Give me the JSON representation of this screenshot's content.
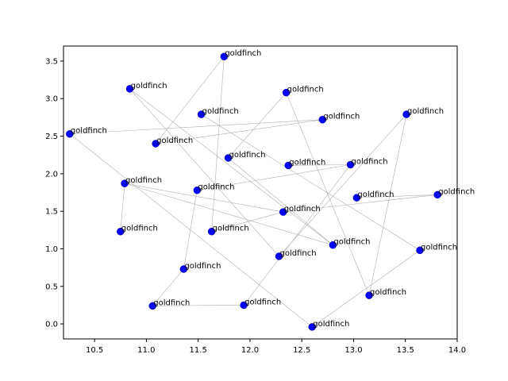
{
  "chart_data": {
    "type": "scatter",
    "title": "",
    "xlabel": "",
    "ylabel": "",
    "xlim": [
      10.2,
      14.0
    ],
    "ylim": [
      -0.2,
      3.7
    ],
    "xticks": [
      10.5,
      11.0,
      11.5,
      12.0,
      12.5,
      13.0,
      13.5,
      14.0
    ],
    "xtick_labels": [
      "10.5",
      "11.0",
      "11.5",
      "12.0",
      "12.5",
      "13.0",
      "13.5",
      "14.0"
    ],
    "yticks": [
      0.0,
      0.5,
      1.0,
      1.5,
      2.0,
      2.5,
      3.0,
      3.5
    ],
    "ytick_labels": [
      "0.0",
      "0.5",
      "1.0",
      "1.5",
      "2.0",
      "2.5",
      "3.0",
      "3.5"
    ],
    "grid": false,
    "point_color": "#0000ff",
    "edge_color": "#b0b0b0",
    "points": [
      {
        "x": 11.75,
        "y": 3.56,
        "label": "goldfinch"
      },
      {
        "x": 10.84,
        "y": 3.13,
        "label": "goldfinch"
      },
      {
        "x": 12.35,
        "y": 3.08,
        "label": "goldfinch"
      },
      {
        "x": 11.53,
        "y": 2.79,
        "label": "goldfinch"
      },
      {
        "x": 13.51,
        "y": 2.79,
        "label": "goldfinch"
      },
      {
        "x": 12.7,
        "y": 2.72,
        "label": "goldfinch"
      },
      {
        "x": 10.26,
        "y": 2.53,
        "label": "goldfinch"
      },
      {
        "x": 11.09,
        "y": 2.4,
        "label": "goldfinch"
      },
      {
        "x": 11.79,
        "y": 2.21,
        "label": "goldfinch"
      },
      {
        "x": 12.37,
        "y": 2.11,
        "label": "goldfinch"
      },
      {
        "x": 12.97,
        "y": 2.12,
        "label": "goldfinch"
      },
      {
        "x": 10.79,
        "y": 1.87,
        "label": "goldfinch"
      },
      {
        "x": 11.49,
        "y": 1.78,
        "label": "goldfinch"
      },
      {
        "x": 13.03,
        "y": 1.68,
        "label": "goldfinch"
      },
      {
        "x": 13.81,
        "y": 1.72,
        "label": "goldfinch"
      },
      {
        "x": 12.32,
        "y": 1.49,
        "label": "goldfinch"
      },
      {
        "x": 10.75,
        "y": 1.23,
        "label": "goldfinch"
      },
      {
        "x": 11.63,
        "y": 1.23,
        "label": "goldfinch"
      },
      {
        "x": 12.8,
        "y": 1.05,
        "label": "goldfinch"
      },
      {
        "x": 12.28,
        "y": 0.9,
        "label": "goldfinch"
      },
      {
        "x": 13.64,
        "y": 0.98,
        "label": "goldfinch"
      },
      {
        "x": 11.36,
        "y": 0.73,
        "label": "goldfinch"
      },
      {
        "x": 13.15,
        "y": 0.38,
        "label": "goldfinch"
      },
      {
        "x": 11.06,
        "y": 0.24,
        "label": "goldfinch"
      },
      {
        "x": 11.94,
        "y": 0.25,
        "label": "goldfinch"
      },
      {
        "x": 12.6,
        "y": -0.04,
        "label": "goldfinch"
      }
    ],
    "edges": [
      [
        0,
        7
      ],
      [
        0,
        17
      ],
      [
        1,
        19
      ],
      [
        1,
        18
      ],
      [
        2,
        22
      ],
      [
        2,
        8
      ],
      [
        3,
        20
      ],
      [
        4,
        19
      ],
      [
        4,
        22
      ],
      [
        5,
        6
      ],
      [
        5,
        7
      ],
      [
        6,
        25
      ],
      [
        8,
        18
      ],
      [
        9,
        10
      ],
      [
        10,
        12
      ],
      [
        11,
        16
      ],
      [
        11,
        18
      ],
      [
        13,
        14
      ],
      [
        14,
        15
      ],
      [
        15,
        17
      ],
      [
        20,
        25
      ],
      [
        21,
        12
      ],
      [
        21,
        23
      ],
      [
        23,
        24
      ],
      [
        24,
        10
      ],
      [
        15,
        11
      ]
    ]
  }
}
